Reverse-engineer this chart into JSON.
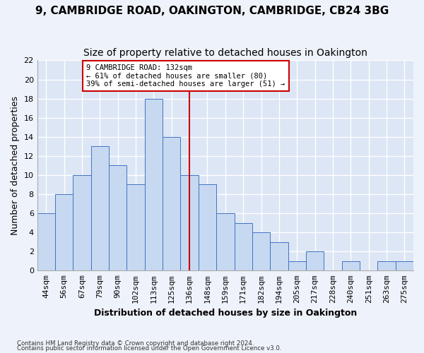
{
  "title": "9, CAMBRIDGE ROAD, OAKINGTON, CAMBRIDGE, CB24 3BG",
  "subtitle": "Size of property relative to detached houses in Oakington",
  "xlabel": "Distribution of detached houses by size in Oakington",
  "ylabel": "Number of detached properties",
  "footnote1": "Contains HM Land Registry data © Crown copyright and database right 2024.",
  "footnote2": "Contains public sector information licensed under the Open Government Licence v3.0.",
  "bar_labels": [
    "44sqm",
    "56sqm",
    "67sqm",
    "79sqm",
    "90sqm",
    "102sqm",
    "113sqm",
    "125sqm",
    "136sqm",
    "148sqm",
    "159sqm",
    "171sqm",
    "182sqm",
    "194sqm",
    "205sqm",
    "217sqm",
    "228sqm",
    "240sqm",
    "251sqm",
    "263sqm",
    "275sqm"
  ],
  "bar_values": [
    6,
    8,
    10,
    13,
    11,
    9,
    18,
    14,
    10,
    9,
    6,
    5,
    4,
    3,
    1,
    2,
    0,
    1,
    0,
    1,
    1
  ],
  "bar_color": "#c6d9f0",
  "bar_edge_color": "#4472c4",
  "background_color": "#dce6f5",
  "grid_color": "#ffffff",
  "reference_line_x": 8,
  "reference_line_color": "#cc0000",
  "annotation_text": "9 CAMBRIDGE ROAD: 132sqm\n← 61% of detached houses are smaller (80)\n39% of semi-detached houses are larger (51) →",
  "annotation_box_color": "#cc0000",
  "ylim": [
    0,
    22
  ],
  "yticks": [
    0,
    2,
    4,
    6,
    8,
    10,
    12,
    14,
    16,
    18,
    20,
    22
  ],
  "title_fontsize": 11,
  "subtitle_fontsize": 10,
  "axis_fontsize": 9,
  "tick_fontsize": 8
}
